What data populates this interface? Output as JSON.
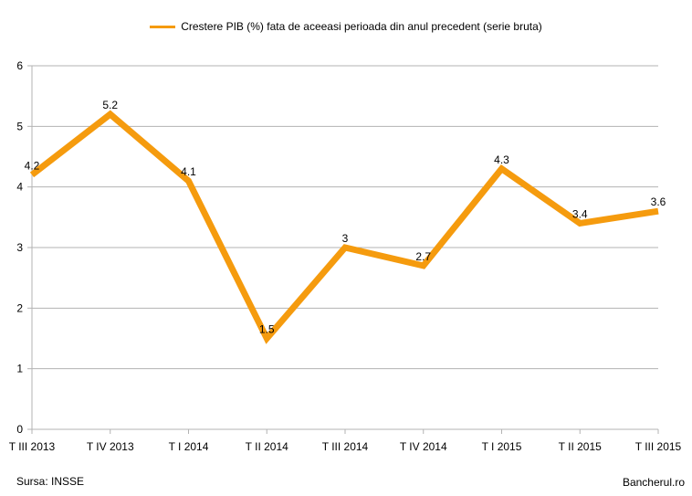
{
  "chart_data": {
    "type": "line",
    "categories": [
      "T III 2013",
      "T IV 2013",
      "T I 2014",
      "T II 2014",
      "T III 2014",
      "T IV 2014",
      "T I 2015",
      "T II 2015",
      "T III 2015"
    ],
    "series": [
      {
        "name": "Crestere PIB (%) fata de aceeasi perioada din anul precedent (serie bruta)",
        "values": [
          4.2,
          5.2,
          4.1,
          1.5,
          3,
          2.7,
          4.3,
          3.4,
          3.6
        ],
        "labels": [
          "4.2",
          "5.2",
          "4.1",
          "1.5",
          "3",
          "2.7",
          "4.3",
          "3.4",
          "3.6"
        ],
        "color": "#f59b0e"
      }
    ],
    "yticks": [
      "0",
      "1",
      "2",
      "3",
      "4",
      "5",
      "6"
    ],
    "ylim": [
      0,
      6
    ],
    "grid": true,
    "legend": "top-center"
  },
  "footer": {
    "source": "Sursa: INSSE",
    "brand": "Bancherul.ro"
  }
}
